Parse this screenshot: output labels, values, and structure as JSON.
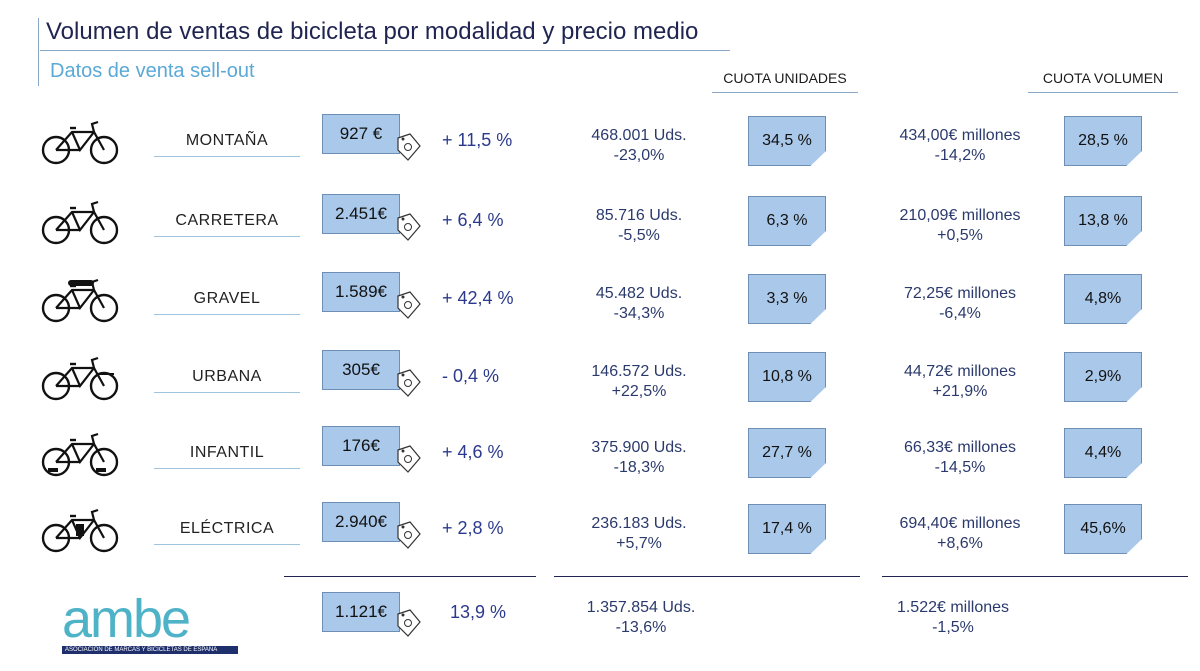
{
  "header": {
    "title": "Volumen de ventas de bicicleta por modalidad y precio medio",
    "subtitle": "Datos de venta sell-out",
    "col_units": "CUOTA UNIDADES",
    "col_volume": "CUOTA VOLUMEN"
  },
  "rows": [
    {
      "category": "MONTAÑA",
      "price": "927 €",
      "price_change": "+ 11,5 %",
      "units": "468.001 Uds.",
      "units_change": "-23,0%",
      "units_share": "34,5 %",
      "volume": "434,00€ millones",
      "volume_change": "-14,2%",
      "volume_share": "28,5 %",
      "icon": "mountain-bike-icon"
    },
    {
      "category": "CARRETERA",
      "price": "2.451€",
      "price_change": "+ 6,4 %",
      "units": "85.716 Uds.",
      "units_change": "-5,5%",
      "units_share": "6,3 %",
      "volume": "210,09€  millones",
      "volume_change": "+0,5%",
      "volume_share": "13,8 %",
      "icon": "road-bike-icon"
    },
    {
      "category": "GRAVEL",
      "price": "1.589€",
      "price_change": "+ 42,4 %",
      "units": "45.482 Uds.",
      "units_change": "-34,3%",
      "units_share": "3,3 %",
      "volume": "72,25€ millones",
      "volume_change": "-6,4%",
      "volume_share": "4,8%",
      "icon": "gravel-bike-icon"
    },
    {
      "category": "URBANA",
      "price": "305€",
      "price_change": "- 0,4 %",
      "units": "146.572 Uds.",
      "units_change": "+22,5%",
      "units_share": "10,8 %",
      "volume": "44,72€ millones",
      "volume_change": "+21,9%",
      "volume_share": "2,9%",
      "icon": "city-bike-icon"
    },
    {
      "category": "INFANTIL",
      "price": "176€",
      "price_change": "+ 4,6 %",
      "units": "375.900 Uds.",
      "units_change": "-18,3%",
      "units_share": "27,7 %",
      "volume": "66,33€ millones",
      "volume_change": "-14,5%",
      "volume_share": "4,4%",
      "icon": "kids-bike-icon"
    },
    {
      "category": "ELÉCTRICA",
      "price": "2.940€",
      "price_change": "+ 2,8 %",
      "units": "236.183 Uds.",
      "units_change": "+5,7%",
      "units_share": "17,4 %",
      "volume": "694,40€ millones",
      "volume_change": "+8,6%",
      "volume_share": "45,6%",
      "icon": "electric-bike-icon"
    }
  ],
  "total": {
    "price": "1.121€",
    "price_change": "13,9 %",
    "units": "1.357.854 Uds.",
    "units_change": "-13,6%",
    "volume": "1.522€ millones",
    "volume_change": "-1,5%"
  },
  "logo": {
    "text": "ambe",
    "tagline": "ASOCIACIÓN DE MARCAS Y BICICLETAS DE ESPAÑA"
  },
  "colors": {
    "box_fill": "#a9c8ea",
    "title": "#1f2450",
    "subtitle": "#5aa9d6",
    "logo": "#4fb3c8"
  }
}
